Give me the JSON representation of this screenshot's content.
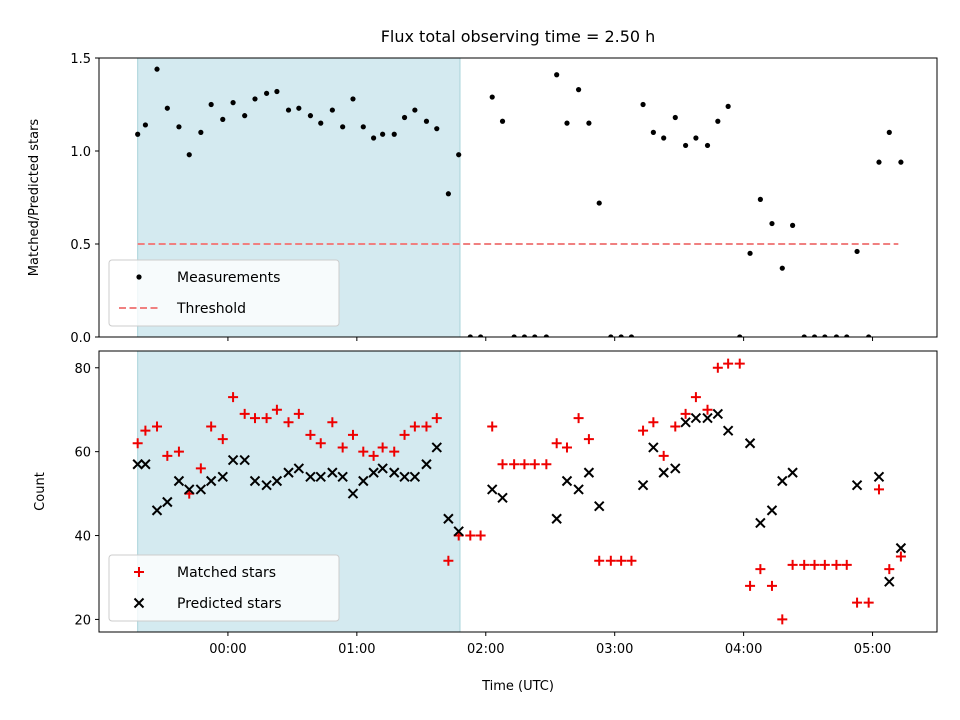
{
  "chart_data": {
    "title": "Flux total observing time = 2.50 h",
    "xlabel": "Time (UTC)",
    "x_unit": "hours since 00:00 UTC",
    "x_ticks": [
      {
        "value": 0,
        "label": "00:00"
      },
      {
        "value": 1,
        "label": "01:00"
      },
      {
        "value": 2,
        "label": "02:00"
      },
      {
        "value": 3,
        "label": "03:00"
      },
      {
        "value": 4,
        "label": "04:00"
      },
      {
        "value": 5,
        "label": "05:00"
      }
    ],
    "xlim": [
      -1.0,
      5.5
    ],
    "shaded_interval": [
      -0.7,
      1.8
    ],
    "shaded_color": "#d4eaf0",
    "panels": [
      {
        "type": "scatter",
        "ylabel": "Matched/Predicted stars",
        "ylim": [
          0,
          1.5
        ],
        "y_ticks": [
          {
            "value": 0,
            "label": "0.0"
          },
          {
            "value": 0.5,
            "label": "0.5"
          },
          {
            "value": 1.0,
            "label": "1.0"
          },
          {
            "value": 1.5,
            "label": "1.5"
          }
        ],
        "threshold": {
          "name": "Threshold",
          "value": 0.5,
          "x_range": [
            -0.7,
            5.2
          ],
          "color": "#f08080"
        },
        "series": [
          {
            "name": "Measurements",
            "marker": "dot",
            "color": "#000000",
            "x": [
              -0.7,
              -0.64,
              -0.55,
              -0.47,
              -0.38,
              -0.3,
              -0.21,
              -0.13,
              -0.04,
              0.04,
              0.13,
              0.21,
              0.3,
              0.38,
              0.47,
              0.55,
              0.64,
              0.72,
              0.81,
              0.89,
              0.97,
              1.05,
              1.13,
              1.2,
              1.29,
              1.37,
              1.45,
              1.54,
              1.62,
              1.71,
              1.79,
              1.88,
              1.96,
              2.05,
              2.13,
              2.22,
              2.3,
              2.38,
              2.47,
              2.55,
              2.63,
              2.72,
              2.8,
              2.88,
              2.97,
              3.05,
              3.13,
              3.22,
              3.3,
              3.38,
              3.47,
              3.55,
              3.63,
              3.72,
              3.8,
              3.88,
              3.97,
              4.05,
              4.13,
              4.22,
              4.3,
              4.38,
              4.47,
              4.55,
              4.63,
              4.72,
              4.8,
              4.88,
              4.97,
              5.05,
              5.13,
              5.22
            ],
            "y": [
              1.09,
              1.14,
              1.44,
              1.23,
              1.13,
              0.98,
              1.1,
              1.25,
              1.17,
              1.26,
              1.19,
              1.28,
              1.31,
              1.32,
              1.22,
              1.23,
              1.19,
              1.15,
              1.22,
              1.13,
              1.28,
              1.13,
              1.07,
              1.09,
              1.09,
              1.18,
              1.22,
              1.16,
              1.12,
              0.77,
              0.98,
              0.0,
              0.0,
              1.29,
              1.16,
              0.0,
              0.0,
              0.0,
              0.0,
              1.41,
              1.15,
              1.33,
              1.15,
              0.72,
              0.0,
              0.0,
              0.0,
              1.25,
              1.1,
              1.07,
              1.18,
              1.03,
              1.07,
              1.03,
              1.16,
              1.24,
              0.0,
              0.45,
              0.74,
              0.61,
              0.37,
              0.6,
              0.0,
              0.0,
              0.0,
              0.0,
              0.0,
              0.46,
              0.0,
              0.94,
              1.1,
              0.94
            ]
          }
        ],
        "legend": {
          "placement": "lower-left",
          "items": [
            "Measurements",
            "Threshold"
          ]
        }
      },
      {
        "type": "scatter",
        "ylabel": "Count",
        "ylim": [
          17,
          84
        ],
        "y_ticks": [
          {
            "value": 20,
            "label": "20"
          },
          {
            "value": 40,
            "label": "40"
          },
          {
            "value": 60,
            "label": "60"
          },
          {
            "value": 80,
            "label": "80"
          }
        ],
        "series": [
          {
            "name": "Matched stars",
            "marker": "plus",
            "color": "#ee0000",
            "x": [
              -0.7,
              -0.64,
              -0.55,
              -0.47,
              -0.38,
              -0.3,
              -0.21,
              -0.13,
              -0.04,
              0.04,
              0.13,
              0.21,
              0.3,
              0.38,
              0.47,
              0.55,
              0.64,
              0.72,
              0.81,
              0.89,
              0.97,
              1.05,
              1.13,
              1.2,
              1.29,
              1.37,
              1.45,
              1.54,
              1.62,
              1.71,
              1.79,
              1.88,
              1.96,
              2.05,
              2.13,
              2.22,
              2.3,
              2.38,
              2.47,
              2.55,
              2.63,
              2.72,
              2.8,
              2.88,
              2.97,
              3.05,
              3.13,
              3.22,
              3.3,
              3.38,
              3.47,
              3.55,
              3.63,
              3.72,
              3.8,
              3.88,
              3.97,
              4.05,
              4.13,
              4.22,
              4.3,
              4.38,
              4.47,
              4.55,
              4.63,
              4.72,
              4.8,
              4.88,
              4.97,
              5.05,
              5.13,
              5.22
            ],
            "y": [
              62,
              65,
              66,
              59,
              60,
              50,
              56,
              66,
              63,
              73,
              69,
              68,
              68,
              70,
              67,
              69,
              64,
              62,
              67,
              61,
              64,
              60,
              59,
              61,
              60,
              64,
              66,
              66,
              68,
              34,
              40,
              40,
              40,
              66,
              57,
              57,
              57,
              57,
              57,
              62,
              61,
              68,
              63,
              34,
              34,
              34,
              34,
              65,
              67,
              59,
              66,
              69,
              73,
              70,
              80,
              81,
              81,
              28,
              32,
              28,
              20,
              33,
              33,
              33,
              33,
              33,
              33,
              24,
              24,
              51,
              32,
              35
            ]
          },
          {
            "name": "Predicted stars",
            "marker": "x",
            "color": "#000000",
            "x": [
              -0.7,
              -0.64,
              -0.55,
              -0.47,
              -0.38,
              -0.3,
              -0.21,
              -0.13,
              -0.04,
              0.04,
              0.13,
              0.21,
              0.3,
              0.38,
              0.47,
              0.55,
              0.64,
              0.72,
              0.81,
              0.89,
              0.97,
              1.05,
              1.13,
              1.2,
              1.29,
              1.37,
              1.45,
              1.54,
              1.62,
              1.71,
              1.79,
              2.05,
              2.13,
              2.55,
              2.63,
              2.72,
              2.8,
              2.88,
              3.22,
              3.3,
              3.38,
              3.47,
              3.55,
              3.63,
              3.72,
              3.8,
              3.88,
              4.05,
              4.13,
              4.22,
              4.3,
              4.38,
              4.88,
              5.05,
              5.13,
              5.22
            ],
            "y": [
              57,
              57,
              46,
              48,
              53,
              51,
              51,
              53,
              54,
              58,
              58,
              53,
              52,
              53,
              55,
              56,
              54,
              54,
              55,
              54,
              50,
              53,
              55,
              56,
              55,
              54,
              54,
              57,
              61,
              44,
              41,
              51,
              49,
              44,
              53,
              51,
              55,
              47,
              52,
              61,
              55,
              56,
              67,
              68,
              68,
              69,
              65,
              62,
              43,
              46,
              53,
              55,
              52,
              54,
              29,
              37
            ]
          }
        ],
        "legend": {
          "placement": "lower-left",
          "items": [
            "Matched stars",
            "Predicted stars"
          ]
        }
      }
    ]
  }
}
